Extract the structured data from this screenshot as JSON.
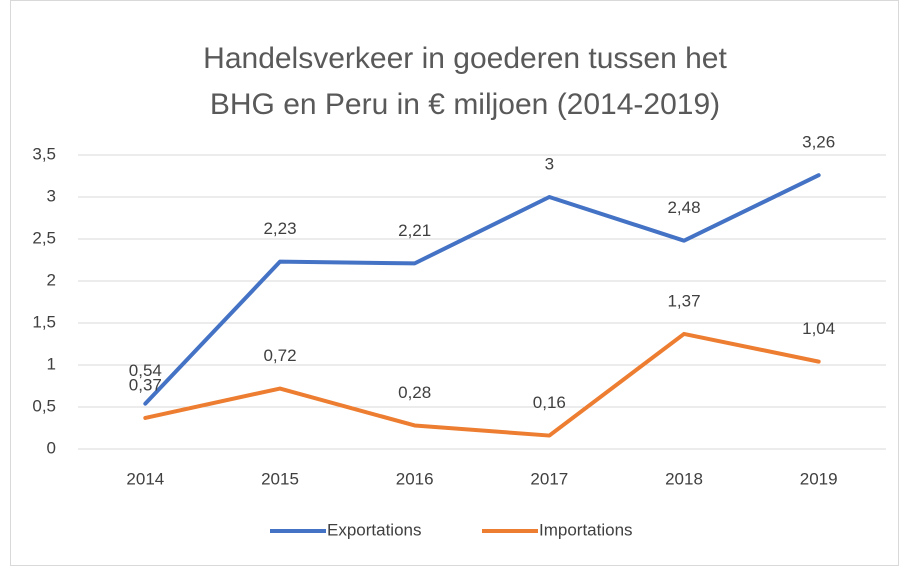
{
  "chart_data": {
    "type": "line",
    "title": "Handelsverkeer in goederen tussen het BHG en Peru in € miljoen (2014-2019)",
    "categories": [
      "2014",
      "2015",
      "2016",
      "2017",
      "2018",
      "2019"
    ],
    "series": [
      {
        "name": "Exportations",
        "color": "#4472c4",
        "values": [
          0.54,
          2.23,
          2.21,
          3,
          2.48,
          3.26
        ],
        "value_labels": [
          "0,54",
          "2,23",
          "2,21",
          "3",
          "2,48",
          "3,26"
        ]
      },
      {
        "name": "Importations",
        "color": "#ed7d31",
        "values": [
          0.37,
          0.72,
          0.28,
          0.16,
          1.37,
          1.04
        ],
        "value_labels": [
          "0,37",
          "0,72",
          "0,28",
          "0,16",
          "1,37",
          "1,04"
        ]
      }
    ],
    "ylim": [
      0,
      3.5
    ],
    "yticks": [
      0,
      {
        "value": 0.5,
        "label": "0,5"
      },
      1,
      {
        "value": 1.5,
        "label": "1,5"
      },
      2,
      {
        "value": 2.5,
        "label": "2,5"
      },
      3,
      {
        "value": 3.5,
        "label": "3,5"
      }
    ],
    "grid": true,
    "legend": "bottom"
  }
}
